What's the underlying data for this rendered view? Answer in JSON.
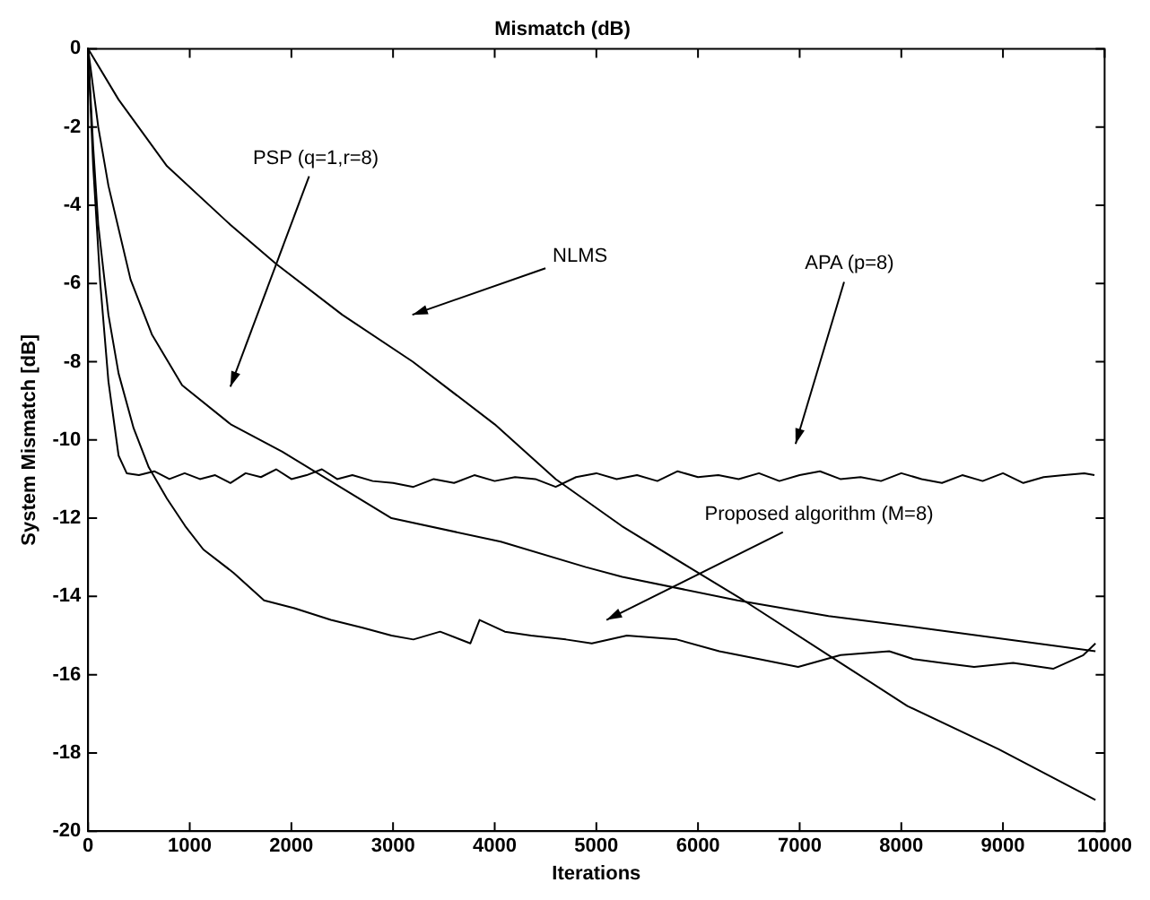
{
  "chart_data": {
    "type": "line",
    "title": "Mismatch (dB)",
    "xlabel": "Iterations",
    "ylabel": "System Mismatch [dB]",
    "xlim": [
      0,
      10000
    ],
    "xticks": [
      0,
      1000,
      2000,
      3000,
      4000,
      5000,
      6000,
      7000,
      8000,
      9000,
      10000
    ],
    "ylim": [
      -20,
      0
    ],
    "yticks": [
      -20,
      -18,
      -16,
      -14,
      -12,
      -10,
      -8,
      -6,
      -4,
      -2,
      0
    ],
    "grid": false,
    "legend": false,
    "marker": "none",
    "line_style": "solid",
    "series": [
      {
        "color": "#000000",
        "x": [
          0,
          300,
          776,
          1400,
          1851,
          2500,
          3194,
          4000,
          4600,
          5250,
          5910,
          6448,
          7403,
          8060,
          8955,
          9910
        ],
        "values": [
          0,
          -1.3,
          -3.0,
          -4.5,
          -5.5,
          -6.8,
          -8.0,
          -9.6,
          -11.0,
          -12.2,
          -13.25,
          -14.1,
          -15.7,
          -16.8,
          -17.9,
          -19.2
        ]
      },
      {
        "color": "#000000",
        "x": [
          0,
          100,
          200,
          418,
          627,
          925,
          1403,
          1910,
          2985,
          4060,
          4896,
          5254,
          6388,
          7284,
          8478,
          9910
        ],
        "values": [
          0,
          -2,
          -3.5,
          -5.9,
          -7.3,
          -8.6,
          -9.6,
          -10.3,
          -12.0,
          -12.6,
          -13.25,
          -13.5,
          -14.1,
          -14.5,
          -14.9,
          -15.4
        ]
      },
      {
        "color": "#000000",
        "x": [
          0,
          50,
          120,
          200,
          300,
          380,
          500,
          650,
          800,
          950,
          1100,
          1250,
          1400,
          1550,
          1700,
          1850,
          2000,
          2150,
          2300,
          2450,
          2600,
          2800,
          3000,
          3200,
          3400,
          3600,
          3800,
          4000,
          4200,
          4400,
          4600,
          4800,
          5000,
          5200,
          5400,
          5600,
          5800,
          6000,
          6200,
          6400,
          6600,
          6800,
          7000,
          7200,
          7400,
          7600,
          7800,
          8000,
          8200,
          8400,
          8600,
          8800,
          9000,
          9200,
          9400,
          9600,
          9800,
          9900
        ],
        "values": [
          0,
          -3,
          -6,
          -8.5,
          -10.4,
          -10.85,
          -10.9,
          -10.8,
          -11.0,
          -10.85,
          -11.0,
          -10.9,
          -11.1,
          -10.85,
          -10.95,
          -10.75,
          -11.0,
          -10.9,
          -10.75,
          -11.0,
          -10.9,
          -11.05,
          -11.1,
          -11.2,
          -11.0,
          -11.1,
          -10.9,
          -11.05,
          -10.95,
          -11.0,
          -11.2,
          -10.95,
          -10.85,
          -11.0,
          -10.9,
          -11.05,
          -10.8,
          -10.95,
          -10.9,
          -11.0,
          -10.85,
          -11.05,
          -10.9,
          -10.8,
          -11.0,
          -10.95,
          -11.05,
          -10.85,
          -11.0,
          -11.1,
          -10.9,
          -11.05,
          -10.85,
          -11.1,
          -10.95,
          -10.9,
          -10.85,
          -10.9
        ]
      },
      {
        "color": "#000000",
        "x": [
          0,
          50,
          100,
          200,
          300,
          448,
          597,
          776,
          955,
          1134,
          1433,
          1731,
          2030,
          2388,
          2700,
          2985,
          3200,
          3463,
          3761,
          3851,
          4100,
          4358,
          4700,
          4955,
          5300,
          5791,
          6209,
          6600,
          6985,
          7403,
          7881,
          8119,
          8400,
          8716,
          9100,
          9493,
          9791,
          9910
        ],
        "values": [
          0,
          -2.5,
          -4.5,
          -6.8,
          -8.3,
          -9.7,
          -10.7,
          -11.5,
          -12.2,
          -12.8,
          -13.4,
          -14.1,
          -14.3,
          -14.6,
          -14.8,
          -15.0,
          -15.1,
          -14.9,
          -15.2,
          -14.6,
          -14.9,
          -15.0,
          -15.1,
          -15.2,
          -15.0,
          -15.1,
          -15.4,
          -15.6,
          -15.8,
          -15.5,
          -15.4,
          -15.6,
          -15.7,
          -15.8,
          -15.7,
          -15.85,
          -15.5,
          -15.2
        ]
      }
    ],
    "annotations": [
      "PSP (q=1,r=8)",
      "NLMS",
      "APA (p=8)",
      "Proposed algorithm (M=8)"
    ]
  }
}
